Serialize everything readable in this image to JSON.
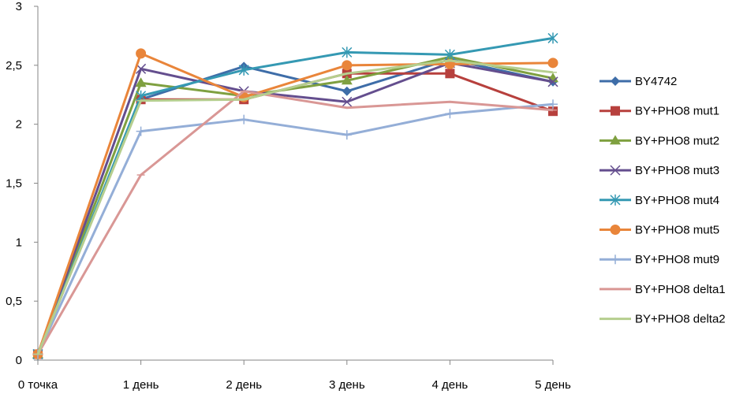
{
  "chart_data": {
    "type": "line",
    "categories": [
      "0 точка",
      "1 день",
      "2 день",
      "3 день",
      "4 день",
      "5 день"
    ],
    "ylim": [
      0,
      3
    ],
    "yticks": [
      0,
      0.5,
      1,
      1.5,
      2,
      2.5,
      3
    ],
    "ytick_labels": [
      "0",
      "0,5",
      "1",
      "1,5",
      "2",
      "2,5",
      "3"
    ],
    "grid": false,
    "legend_position": "right",
    "series": [
      {
        "name": "BY4742",
        "color": "#3E6DA8",
        "marker": "diamond",
        "values": [
          0.05,
          2.21,
          2.49,
          2.28,
          2.55,
          2.36
        ]
      },
      {
        "name": "BY+PHO8 mut1",
        "color": "#B7403D",
        "marker": "square",
        "values": [
          0.05,
          2.21,
          2.21,
          2.43,
          2.43,
          2.11
        ]
      },
      {
        "name": "BY+PHO8 mut2",
        "color": "#7FA040",
        "marker": "triangle",
        "values": [
          0.05,
          2.35,
          2.24,
          2.37,
          2.57,
          2.39
        ]
      },
      {
        "name": "BY+PHO8 mut3",
        "color": "#644E8E",
        "marker": "x",
        "values": [
          0.05,
          2.47,
          2.28,
          2.19,
          2.52,
          2.36
        ]
      },
      {
        "name": "BY+PHO8 mut4",
        "color": "#3599B3",
        "marker": "star",
        "values": [
          0.05,
          2.24,
          2.46,
          2.61,
          2.59,
          2.73
        ]
      },
      {
        "name": "BY+PHO8 mut5",
        "color": "#E9853A",
        "marker": "circle",
        "values": [
          0.05,
          2.6,
          2.23,
          2.5,
          2.51,
          2.52
        ]
      },
      {
        "name": "BY+PHO8 mut9",
        "color": "#94AED7",
        "marker": "plus",
        "values": [
          0.05,
          1.94,
          2.04,
          1.91,
          2.09,
          2.17
        ]
      },
      {
        "name": "BY+PHO8 delta1",
        "color": "#D99795",
        "marker": "dash",
        "values": [
          0.05,
          1.57,
          2.28,
          2.14,
          2.19,
          2.12
        ]
      },
      {
        "name": "BY+PHO8 delta2",
        "color": "#B5CE8E",
        "marker": "dash",
        "values": [
          0.05,
          2.2,
          2.21,
          2.43,
          2.54,
          2.44
        ]
      }
    ]
  }
}
